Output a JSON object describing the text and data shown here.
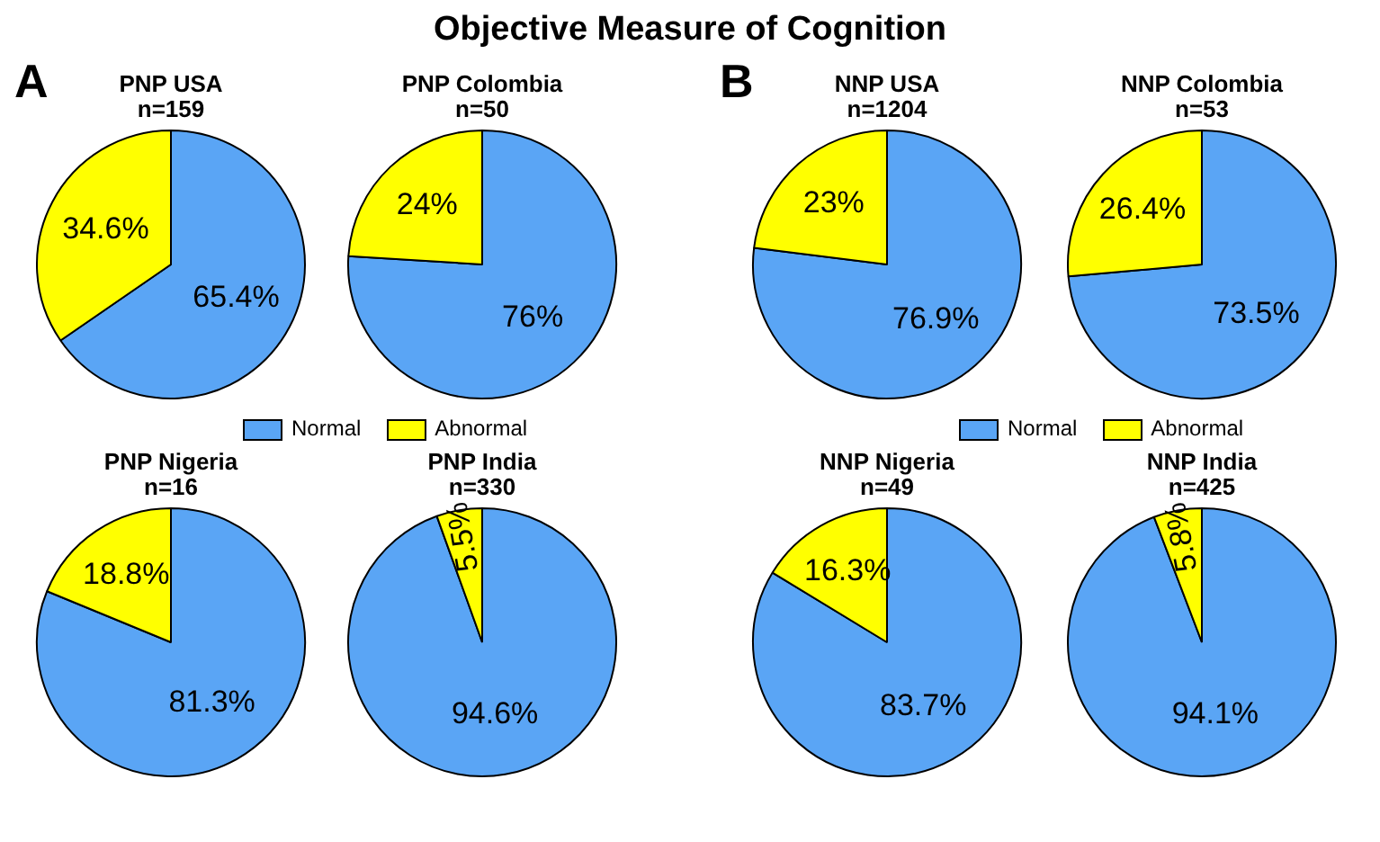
{
  "chart_data": [
    {
      "type": "pie",
      "title": "PNP USA",
      "subtitle": "n=159",
      "categories": [
        "Normal",
        "Abnormal"
      ],
      "values": [
        65.4,
        34.6
      ],
      "colors": [
        "#5aa5f5",
        "#ffff00"
      ],
      "value_labels": [
        "65.4%",
        "34.6%"
      ],
      "legend": "bottom",
      "annotations": [
        "Objective Measure of Cognition",
        "A"
      ]
    },
    {
      "type": "pie",
      "title": "PNP Colombia",
      "subtitle": "n=50",
      "categories": [
        null,
        null
      ],
      "values": [
        76,
        24
      ],
      "colors": [
        "#5aa5f5",
        "#ffff00"
      ],
      "value_labels": [
        "76%",
        "24%"
      ]
    },
    {
      "type": "pie",
      "title": "NNP USA",
      "subtitle": "n=1204",
      "categories": [
        "Normal",
        "Abnormal"
      ],
      "values": [
        76.9,
        23
      ],
      "colors": [
        "#5aa5f5",
        "#ffff00"
      ],
      "value_labels": [
        "76.9%",
        "23%"
      ],
      "legend": "bottom",
      "annotations": [
        "B"
      ]
    },
    {
      "type": "pie",
      "title": "NNP Colombia",
      "subtitle": "n=53",
      "categories": [
        null,
        null
      ],
      "values": [
        73.5,
        26.4
      ],
      "colors": [
        "#5aa5f5",
        "#ffff00"
      ],
      "value_labels": [
        "73.5%",
        "26.4%"
      ]
    },
    {
      "type": "pie",
      "title": "PNP Nigeria",
      "subtitle": "n=16",
      "categories": [
        null,
        null
      ],
      "values": [
        81.3,
        18.8
      ],
      "colors": [
        "#5aa5f5",
        "#ffff00"
      ],
      "value_labels": [
        "81.3%",
        "18.8%"
      ]
    },
    {
      "type": "pie",
      "title": "PNP India",
      "subtitle": "n=330",
      "categories": [
        null,
        null
      ],
      "values": [
        94.6,
        5.5
      ],
      "colors": [
        "#5aa5f5",
        "#ffff00"
      ],
      "value_labels": [
        "94.6%",
        "5.5%"
      ]
    },
    {
      "type": "pie",
      "title": "NNP Nigeria",
      "subtitle": "n=49",
      "categories": [
        null,
        null
      ],
      "values": [
        83.7,
        16.3
      ],
      "colors": [
        "#5aa5f5",
        "#ffff00"
      ],
      "value_labels": [
        "83.7%",
        "16.3%"
      ]
    },
    {
      "type": "pie",
      "title": "NNP India",
      "subtitle": "n=425",
      "categories": [
        null,
        null
      ],
      "values": [
        94.1,
        5.8
      ],
      "colors": [
        "#5aa5f5",
        "#ffff00"
      ],
      "value_labels": [
        "94.1%",
        "5.8%"
      ]
    }
  ]
}
